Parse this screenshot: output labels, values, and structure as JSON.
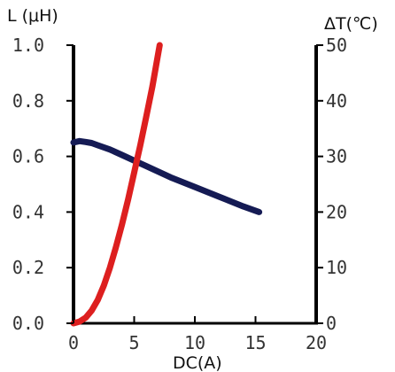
{
  "chart_data": {
    "type": "line",
    "left_axis_title": "L (μH)",
    "right_axis_title": "ΔT(℃)",
    "x_axis_title": "DC(A)",
    "xlim": [
      0,
      20
    ],
    "ylim_left": [
      0,
      1.0
    ],
    "ylim_right": [
      0,
      50
    ],
    "x_ticks": [
      "0",
      "5",
      "10",
      "15",
      "20"
    ],
    "y_left_ticks": [
      "0.0",
      "0.2",
      "0.4",
      "0.6",
      "0.8",
      "1.0"
    ],
    "y_right_ticks": [
      "0",
      "10",
      "20",
      "30",
      "40",
      "50"
    ],
    "grid": false,
    "series": [
      {
        "axis": "left",
        "color": "#151b54",
        "x": [
          0,
          0.5,
          1,
          1.5,
          2,
          3,
          4,
          5,
          6,
          8,
          10,
          12,
          14,
          15.3
        ],
        "y": [
          0.65,
          0.655,
          0.652,
          0.648,
          0.64,
          0.625,
          0.605,
          0.585,
          0.565,
          0.525,
          0.49,
          0.455,
          0.42,
          0.4
        ]
      },
      {
        "axis": "right",
        "color": "#dd1f1f",
        "x": [
          0,
          0.5,
          1,
          1.5,
          2,
          2.5,
          3,
          3.5,
          4,
          4.5,
          5,
          5.5,
          6,
          6.5,
          7.1
        ],
        "y": [
          0,
          0.3,
          1.0,
          2.3,
          4.2,
          6.8,
          10.0,
          13.7,
          17.8,
          22.3,
          27.1,
          32.0,
          37.2,
          42.6,
          50.0
        ]
      }
    ]
  }
}
